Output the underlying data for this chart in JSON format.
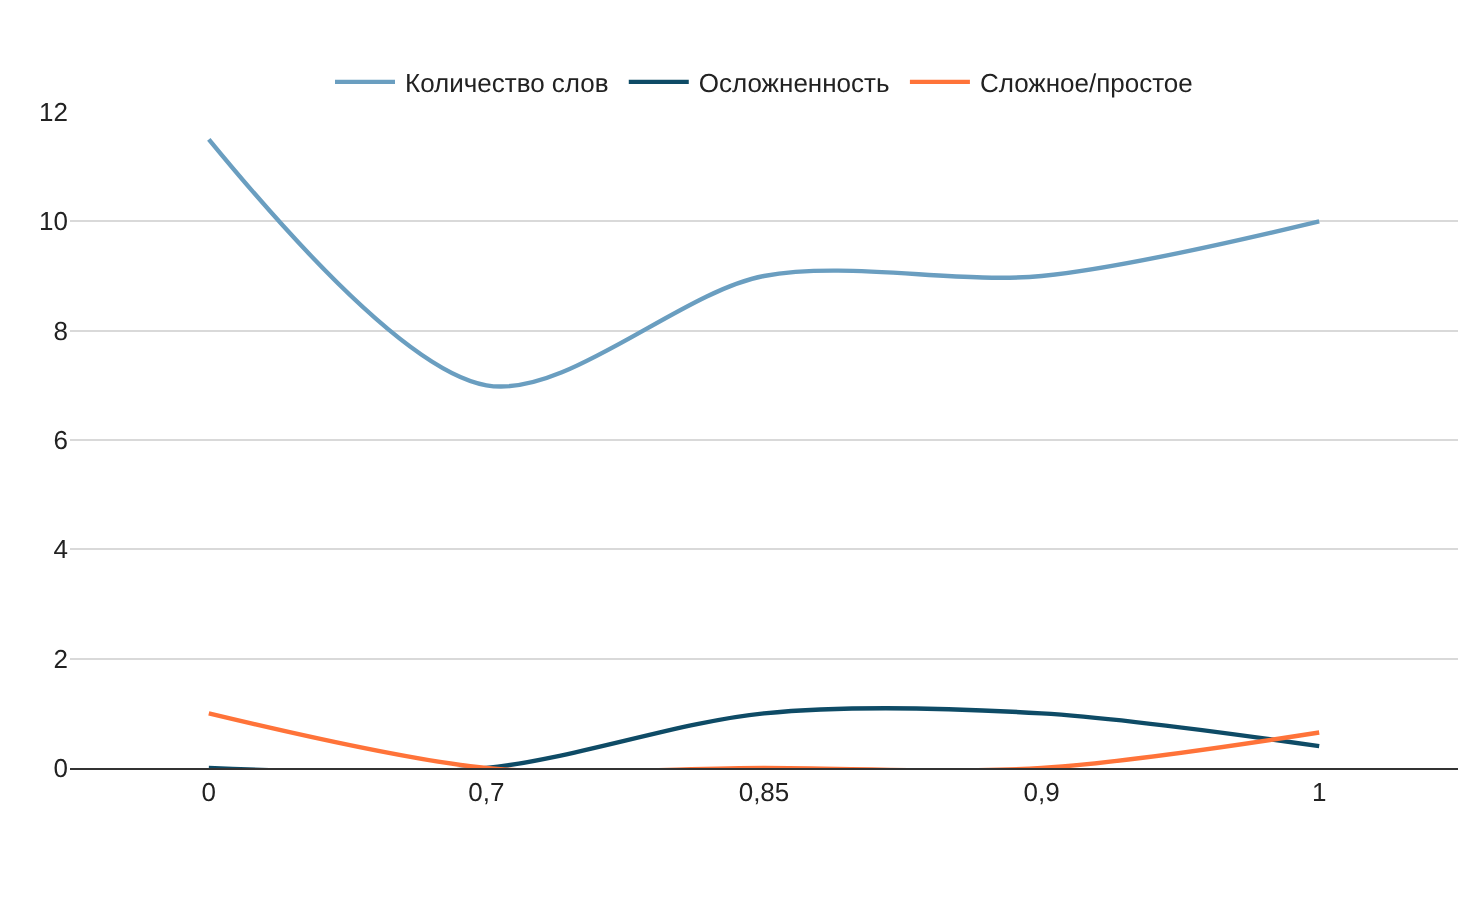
{
  "chart_data": {
    "type": "line",
    "categories": [
      "0",
      "0,7",
      "0,85",
      "0,9",
      "1"
    ],
    "series": [
      {
        "name": "Количество слов",
        "color": "#6a9ec0",
        "values": [
          11.5,
          7,
          9,
          9,
          10
        ]
      },
      {
        "name": "Осложненность",
        "color": "#0e4b66",
        "values": [
          0,
          0,
          1,
          1,
          0.4
        ]
      },
      {
        "name": "Сложное/простое",
        "color": "#ff7339",
        "values": [
          1,
          0,
          0,
          0,
          0.65
        ]
      }
    ],
    "ylim": [
      0,
      12
    ],
    "yticks": [
      0,
      2,
      4,
      6,
      8,
      10,
      12
    ],
    "grid": "y",
    "legend": "top"
  }
}
